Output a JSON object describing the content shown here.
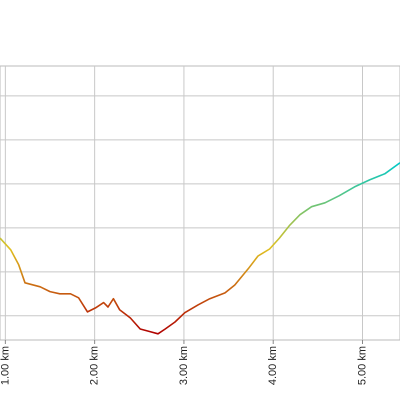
{
  "chart_data": {
    "type": "line",
    "x": [
      0.94,
      1.06,
      1.15,
      1.22,
      1.39,
      1.5,
      1.61,
      1.73,
      1.82,
      1.92,
      2.01,
      2.1,
      2.15,
      2.21,
      2.28,
      2.4,
      2.51,
      2.62,
      2.71,
      2.79,
      2.9,
      3.01,
      3.16,
      3.29,
      3.46,
      3.57,
      3.72,
      3.83,
      3.96,
      4.07,
      4.18,
      4.3,
      4.43,
      4.58,
      4.74,
      4.91,
      5.08,
      5.25,
      5.42
    ],
    "values": [
      2.77,
      2.5,
      2.16,
      1.75,
      1.66,
      1.55,
      1.5,
      1.5,
      1.41,
      1.09,
      1.18,
      1.3,
      1.2,
      1.39,
      1.14,
      0.95,
      0.7,
      0.64,
      0.59,
      0.7,
      0.86,
      1.07,
      1.25,
      1.39,
      1.52,
      1.7,
      2.07,
      2.36,
      2.52,
      2.77,
      3.05,
      3.3,
      3.48,
      3.57,
      3.73,
      3.93,
      4.09,
      4.23,
      4.48
    ],
    "color_scale": [
      "#b00000",
      "#e0c020",
      "#00c8c8"
    ],
    "xlim": [
      0.94,
      5.42
    ],
    "xticks": [
      {
        "value": 1,
        "label": "1.00 km"
      },
      {
        "value": 2,
        "label": "2.00 km"
      },
      {
        "value": 3,
        "label": "3.00 km"
      },
      {
        "value": 4,
        "label": "4.00 km"
      },
      {
        "value": 5,
        "label": "5.00 km"
      }
    ],
    "ylim": [
      0.45,
      6.68
    ],
    "yticks": [
      1,
      2,
      3,
      4,
      5,
      6
    ],
    "grid": true
  }
}
